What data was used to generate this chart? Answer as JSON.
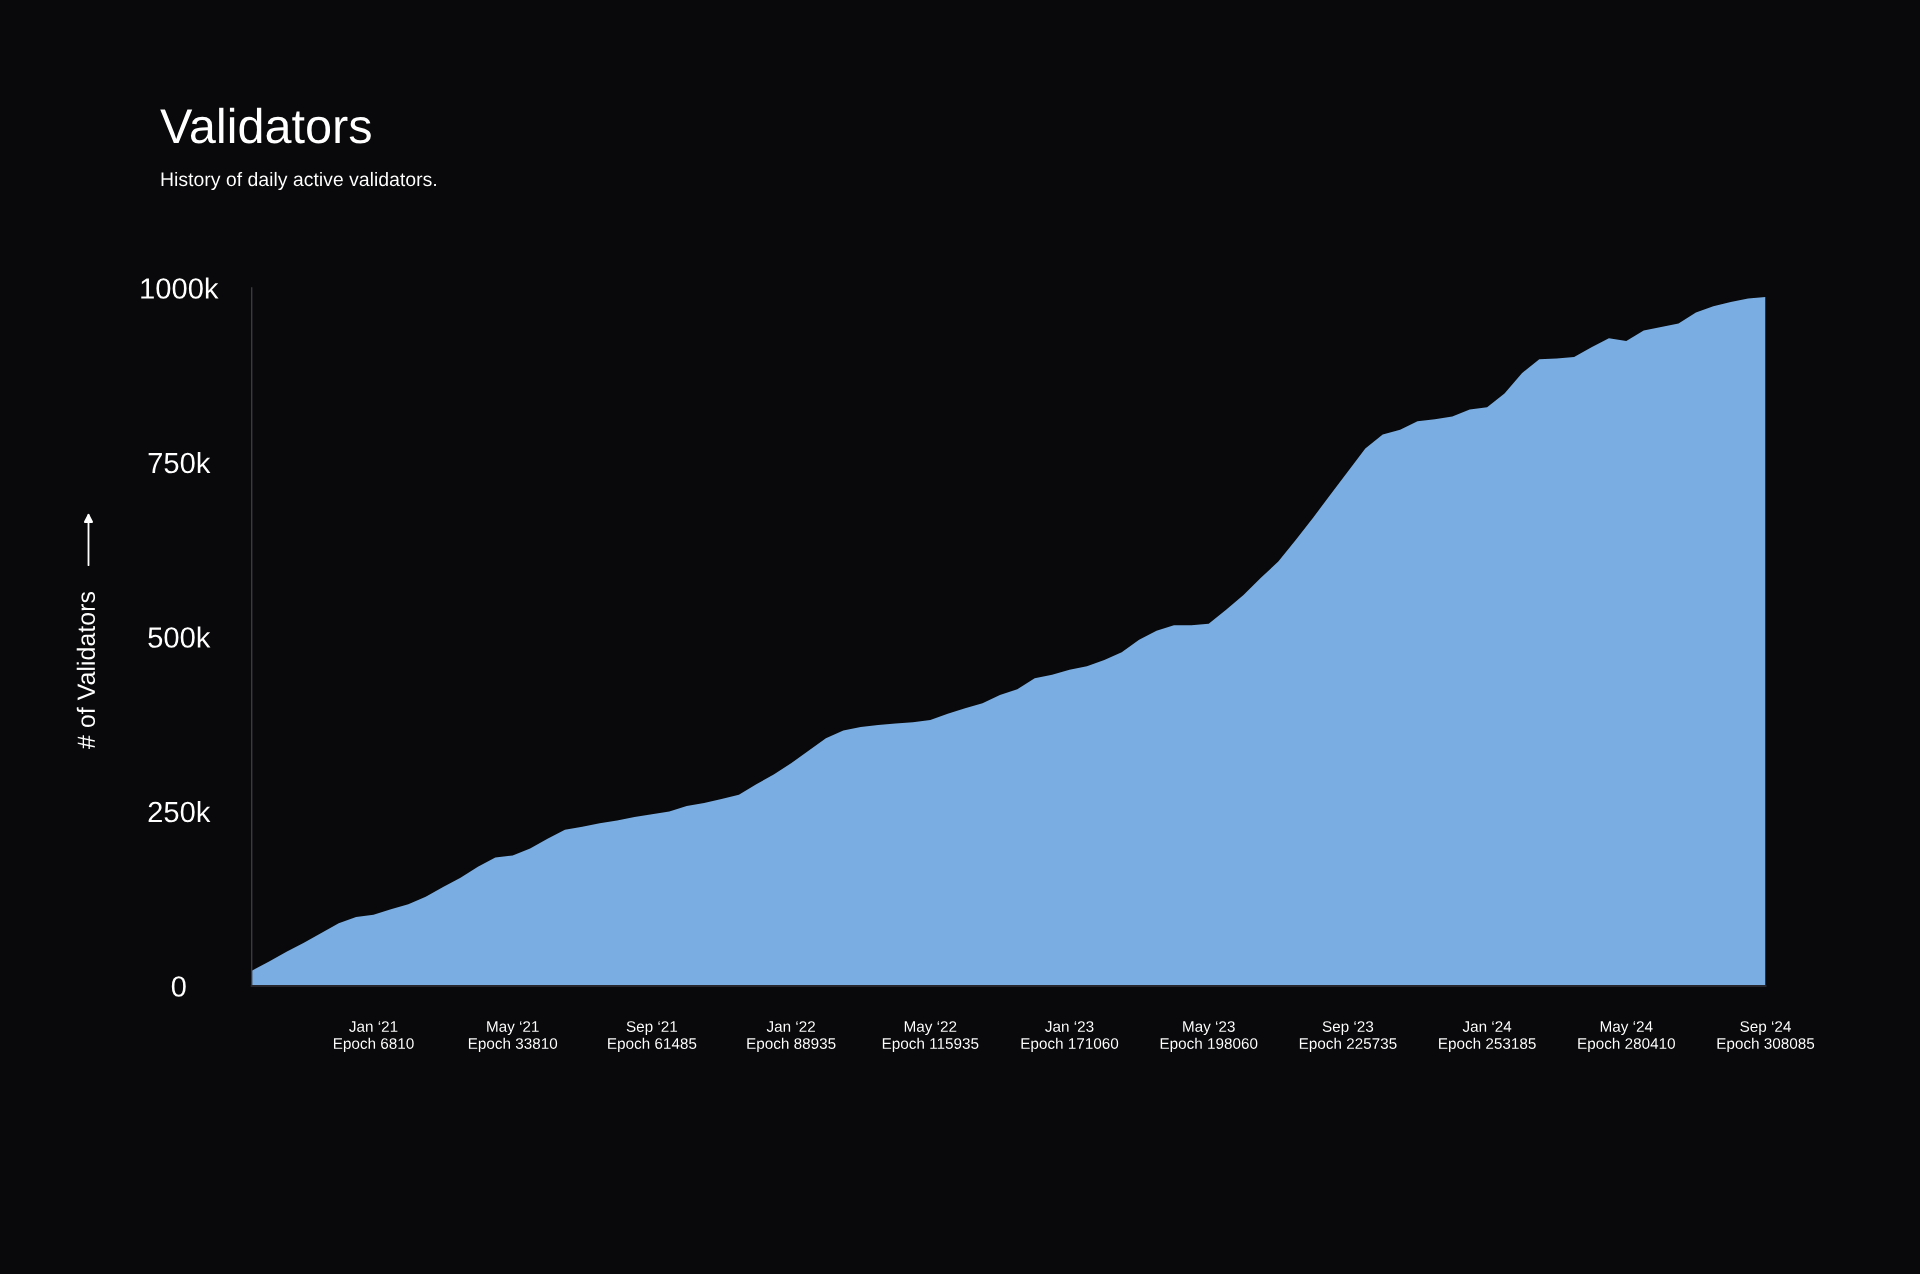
{
  "chart_data": {
    "type": "area",
    "title": "Validators",
    "subtitle": "History of daily active validators.",
    "ylabel": "# of Validators",
    "categories": [
      null,
      null,
      null,
      null,
      null,
      null,
      null,
      "Jan ‘21\nEpoch 6810",
      null,
      null,
      null,
      null,
      null,
      null,
      null,
      "May ‘21\nEpoch 33810",
      null,
      null,
      null,
      null,
      null,
      null,
      null,
      "Sep ‘21\nEpoch 61485",
      null,
      null,
      null,
      null,
      null,
      null,
      null,
      "Jan ‘22\nEpoch 88935",
      null,
      null,
      null,
      null,
      null,
      null,
      null,
      "May ‘22\nEpoch 115935",
      null,
      null,
      null,
      null,
      null,
      null,
      null,
      "Jan ‘23\nEpoch 171060",
      null,
      null,
      null,
      null,
      null,
      null,
      null,
      "May ‘23\nEpoch 198060",
      null,
      null,
      null,
      null,
      null,
      null,
      null,
      "Sep ‘23\nEpoch 225735",
      null,
      null,
      null,
      null,
      null,
      null,
      null,
      "Jan ‘24\nEpoch 253185",
      null,
      null,
      null,
      null,
      null,
      null,
      null,
      "May ‘24\nEpoch 280410",
      null,
      null,
      null,
      null,
      null,
      null,
      null,
      "Sep ‘24\nEpoch 308085"
    ],
    "values": [
      22000,
      35000,
      49000,
      62000,
      76000,
      90000,
      99000,
      102000,
      110000,
      117000,
      128000,
      142000,
      155000,
      171000,
      184000,
      187000,
      197000,
      211000,
      224000,
      228000,
      233000,
      237000,
      242000,
      246000,
      250000,
      258000,
      262000,
      268000,
      274000,
      289000,
      303000,
      319000,
      337000,
      355000,
      366000,
      371000,
      374000,
      376000,
      378000,
      381000,
      390000,
      398000,
      405000,
      417000,
      425000,
      441000,
      446000,
      453000,
      458000,
      467000,
      478000,
      496000,
      509000,
      517000,
      517000,
      519000,
      539000,
      560000,
      585000,
      608000,
      639000,
      671000,
      704000,
      737000,
      770000,
      790000,
      797000,
      809000,
      812000,
      816000,
      826000,
      829000,
      849000,
      878000,
      898000,
      899000,
      901000,
      915000,
      928000,
      924000,
      939000,
      944000,
      949000,
      965000,
      974000,
      980000,
      985000,
      987000
    ],
    "color": "#7aaee3",
    "ylim": [
      0,
      1000000
    ],
    "yticks": [
      0,
      {
        "value": 250000,
        "label": "250k"
      },
      {
        "value": 500000,
        "label": "500k"
      },
      {
        "value": 750000,
        "label": "750k"
      },
      {
        "value": 1000000,
        "label": "1000k"
      }
    ],
    "grid": false
  }
}
